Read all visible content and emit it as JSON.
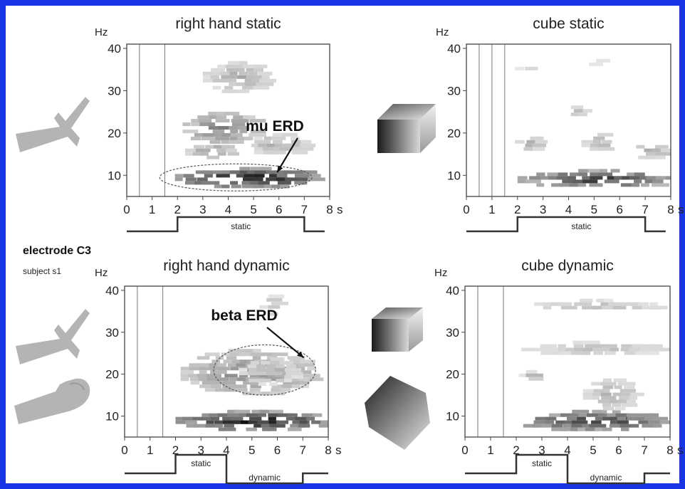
{
  "electrode_label": "electrode C3",
  "subject_label": "subject s1",
  "colors": {
    "frame": "#1a35e6",
    "limb": "#b4b4b4"
  },
  "icons": {
    "hand_open": "open-hand-icon",
    "hand_grasp": "grasping-hand-icon",
    "cube": "cube-icon"
  },
  "chart_data": [
    {
      "type": "heatmap",
      "title": "right hand static",
      "ylabel": "Hz",
      "xunit": "s",
      "x_ticks": [
        0,
        1,
        2,
        3,
        4,
        5,
        6,
        7,
        8
      ],
      "y_ticks": [
        10,
        20,
        30,
        40
      ],
      "xlim": [
        0,
        8
      ],
      "ylim": [
        5,
        41
      ],
      "markers_s": [
        0.5,
        1.5
      ],
      "annotation": {
        "text": "mu ERD",
        "ellipse": {
          "cx": 4.3,
          "cy": 9.5,
          "rx": 3.0,
          "ry": 3.2
        }
      },
      "timeline": {
        "labels": [
          "static"
        ]
      },
      "blobs": [
        {
          "t": [
            1.9,
            7.4
          ],
          "f": [
            7.5,
            12.0
          ],
          "v": 1.0
        },
        {
          "t": [
            2.2,
            5.0
          ],
          "f": [
            18,
            25
          ],
          "v": 0.55
        },
        {
          "t": [
            2.3,
            4.0
          ],
          "f": [
            14,
            18
          ],
          "v": 0.45
        },
        {
          "t": [
            4.6,
            7.0
          ],
          "f": [
            15,
            20
          ],
          "v": 0.35
        },
        {
          "t": [
            3.0,
            5.5
          ],
          "f": [
            30,
            37
          ],
          "v": 0.35
        },
        {
          "t": [
            6.5,
            7.0
          ],
          "f": [
            27,
            29
          ],
          "v": 0.3
        }
      ]
    },
    {
      "type": "heatmap",
      "title": "cube static",
      "ylabel": "Hz",
      "xunit": "s",
      "x_ticks": [
        0,
        1,
        2,
        3,
        4,
        5,
        6,
        7,
        8
      ],
      "y_ticks": [
        10,
        20,
        30,
        40
      ],
      "xlim": [
        0,
        8
      ],
      "ylim": [
        5,
        41
      ],
      "markers_s": [
        0.5,
        1.0,
        1.5
      ],
      "timeline": {
        "labels": [
          "static"
        ]
      },
      "blobs": [
        {
          "t": [
            2.0,
            7.9
          ],
          "f": [
            7.5,
            11.5
          ],
          "v": 0.85
        },
        {
          "t": [
            1.9,
            2.7
          ],
          "f": [
            16,
            20
          ],
          "v": 0.4
        },
        {
          "t": [
            4.5,
            5.5
          ],
          "f": [
            16,
            20
          ],
          "v": 0.35
        },
        {
          "t": [
            6.3,
            7.8
          ],
          "f": [
            14.5,
            18
          ],
          "v": 0.35
        },
        {
          "t": [
            3.8,
            4.6
          ],
          "f": [
            24,
            26.5
          ],
          "v": 0.3
        },
        {
          "t": [
            1.9,
            2.4
          ],
          "f": [
            35,
            36.5
          ],
          "v": 0.3
        },
        {
          "t": [
            4.8,
            5.3
          ],
          "f": [
            36,
            37.5
          ],
          "v": 0.3
        }
      ]
    },
    {
      "type": "heatmap",
      "title": "right hand dynamic",
      "ylabel": "Hz",
      "xunit": "s",
      "x_ticks": [
        0,
        1,
        2,
        3,
        4,
        5,
        6,
        7,
        8
      ],
      "y_ticks": [
        10,
        20,
        30,
        40
      ],
      "xlim": [
        0,
        8
      ],
      "ylim": [
        5,
        41
      ],
      "markers_s": [
        0.5,
        1.5
      ],
      "annotation": {
        "text": "beta ERD",
        "ellipse": {
          "cx": 5.5,
          "cy": 21.0,
          "rx": 2.0,
          "ry": 6.0
        }
      },
      "timeline": {
        "labels": [
          "static",
          "dynamic"
        ]
      },
      "blobs": [
        {
          "t": [
            2.0,
            7.9
          ],
          "f": [
            7.0,
            11.5
          ],
          "v": 1.0
        },
        {
          "t": [
            2.2,
            7.3
          ],
          "f": [
            15.5,
            26
          ],
          "v": 0.5
        },
        {
          "t": [
            4.5,
            6.6
          ],
          "f": [
            18,
            24
          ],
          "v": 0.35
        },
        {
          "t": [
            5.3,
            5.9
          ],
          "f": [
            34,
            39
          ],
          "v": 0.3
        }
      ]
    },
    {
      "type": "heatmap",
      "title": "cube dynamic",
      "ylabel": "Hz",
      "xunit": "s",
      "x_ticks": [
        0,
        1,
        2,
        3,
        4,
        5,
        6,
        7,
        8
      ],
      "y_ticks": [
        10,
        20,
        30,
        40
      ],
      "xlim": [
        0,
        8
      ],
      "ylim": [
        5,
        41
      ],
      "markers_s": [
        0.5,
        1.5
      ],
      "timeline": {
        "labels": [
          "static",
          "dynamic"
        ]
      },
      "blobs": [
        {
          "t": [
            2.0,
            7.8
          ],
          "f": [
            7.0,
            11.5
          ],
          "v": 0.85
        },
        {
          "t": [
            4.6,
            6.5
          ],
          "f": [
            12,
            19
          ],
          "v": 0.35
        },
        {
          "t": [
            2.2,
            7.7
          ],
          "f": [
            25,
            28
          ],
          "v": 0.3
        },
        {
          "t": [
            2.3,
            7.6
          ],
          "f": [
            35.5,
            38
          ],
          "v": 0.3
        },
        {
          "t": [
            2.1,
            2.8
          ],
          "f": [
            19,
            21
          ],
          "v": 0.3
        }
      ]
    }
  ]
}
